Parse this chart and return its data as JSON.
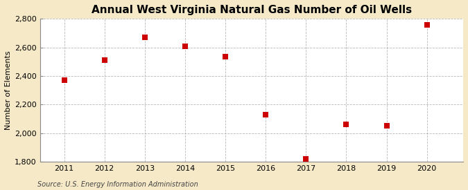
{
  "title": "Annual West Virginia Natural Gas Number of Oil Wells",
  "ylabel": "Number of Elements",
  "source_text": "Source: U.S. Energy Information Administration",
  "years": [
    2011,
    2012,
    2013,
    2014,
    2015,
    2016,
    2017,
    2018,
    2019,
    2020
  ],
  "values": [
    2370,
    2510,
    2670,
    2610,
    2535,
    2130,
    1820,
    2060,
    2050,
    2760
  ],
  "marker_color": "#cc0000",
  "marker_size": 36,
  "outer_bg": "#f5e9c8",
  "plot_bg": "#ffffff",
  "grid_color": "#999999",
  "ylim": [
    1800,
    2800
  ],
  "yticks": [
    1800,
    2000,
    2200,
    2400,
    2600,
    2800
  ],
  "title_fontsize": 11,
  "label_fontsize": 8,
  "tick_fontsize": 8,
  "source_fontsize": 7
}
